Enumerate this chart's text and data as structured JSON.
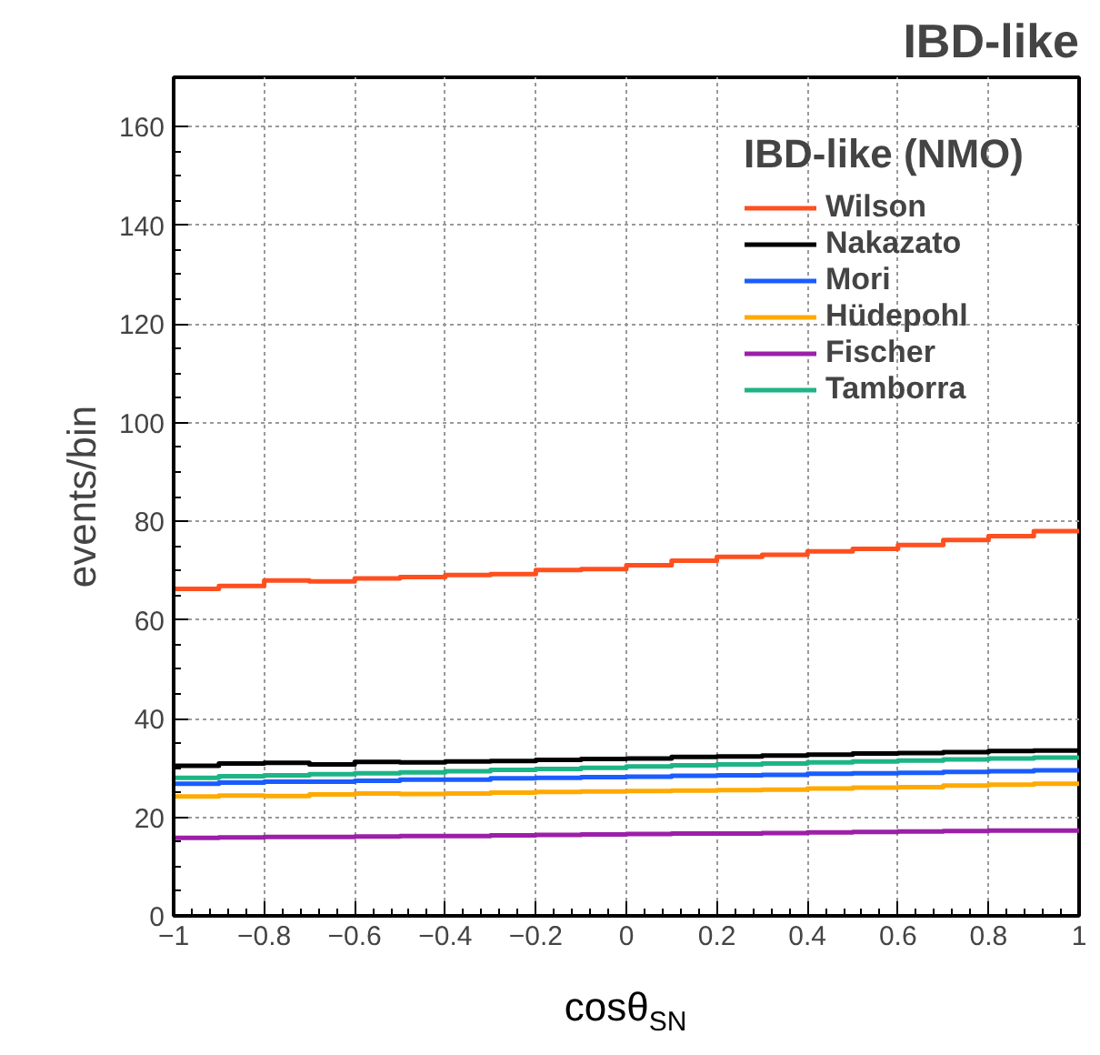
{
  "chart_data": {
    "type": "histogram",
    "title": "IBD-like",
    "xlabel": "cosθ$_{SN}$",
    "ylabel": "events/bin",
    "legend_title": "IBD-like (NMO)",
    "bins": [
      -1,
      -0.9,
      -0.8,
      -0.7,
      -0.6,
      -0.5,
      -0.4,
      -0.3,
      -0.2,
      -0.1,
      0,
      0.1,
      0.2,
      0.3,
      0.4,
      0.5,
      0.6,
      0.7,
      0.8,
      0.9,
      1
    ],
    "series": [
      {
        "name": "Wilson",
        "color": "#ff4f1f",
        "values": [
          66.3,
          66.9,
          68.0,
          67.8,
          68.4,
          68.7,
          69.1,
          69.3,
          70.1,
          70.3,
          71.1,
          72.0,
          72.8,
          73.2,
          73.9,
          74.4,
          75.2,
          76.2,
          77.0,
          78.0
        ]
      },
      {
        "name": "Nakazato",
        "color": "#000000",
        "values": [
          30.4,
          30.9,
          31.0,
          30.7,
          31.2,
          31.1,
          31.3,
          31.4,
          31.6,
          31.8,
          31.9,
          32.2,
          32.3,
          32.5,
          32.7,
          32.9,
          33.0,
          33.2,
          33.4,
          33.5
        ]
      },
      {
        "name": "Mori",
        "color": "#1a5cff",
        "values": [
          26.8,
          27.0,
          27.2,
          27.2,
          27.4,
          27.6,
          27.6,
          27.9,
          28.0,
          28.1,
          28.2,
          28.4,
          28.5,
          28.6,
          28.8,
          28.9,
          29.0,
          29.2,
          29.3,
          29.5
        ]
      },
      {
        "name": "Hüdepohl",
        "color": "#ffaa00",
        "values": [
          24.2,
          24.4,
          24.3,
          24.6,
          24.8,
          24.7,
          24.8,
          25.0,
          25.1,
          25.2,
          25.3,
          25.4,
          25.5,
          25.6,
          25.8,
          26.0,
          26.1,
          26.4,
          26.6,
          26.8
        ]
      },
      {
        "name": "Fischer",
        "color": "#9c1fa8",
        "values": [
          15.8,
          15.9,
          16.0,
          16.0,
          16.1,
          16.2,
          16.2,
          16.3,
          16.4,
          16.5,
          16.6,
          16.7,
          16.7,
          16.8,
          16.9,
          17.0,
          17.1,
          17.2,
          17.3,
          17.3
        ]
      },
      {
        "name": "Tamborra",
        "color": "#1db486",
        "values": [
          28.0,
          28.3,
          28.5,
          28.7,
          28.9,
          29.1,
          29.3,
          29.6,
          29.8,
          30.0,
          30.3,
          30.5,
          30.7,
          30.9,
          31.1,
          31.3,
          31.5,
          31.7,
          31.9,
          32.1
        ]
      }
    ],
    "xlim": [
      -1,
      1
    ],
    "ylim": [
      0,
      170
    ],
    "xticks": [
      {
        "value": -1,
        "label": "−1"
      },
      {
        "value": -0.8,
        "label": "−0.8"
      },
      {
        "value": -0.6,
        "label": "−0.6"
      },
      {
        "value": -0.4,
        "label": "−0.4"
      },
      {
        "value": -0.2,
        "label": "−0.2"
      },
      0,
      0.2,
      0.4,
      0.6,
      0.8,
      1
    ],
    "yticks": [
      0,
      20,
      40,
      60,
      80,
      100,
      120,
      140,
      160
    ],
    "grid": true,
    "legend": "top right"
  }
}
